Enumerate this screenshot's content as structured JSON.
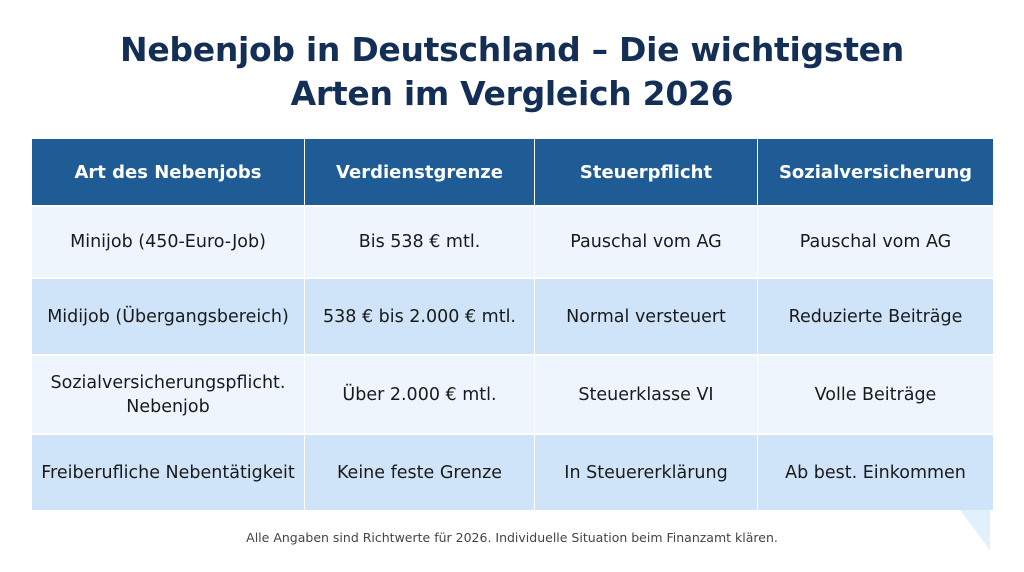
{
  "title": {
    "line1": "Nebenjob in Deutschland – Die wichtigsten",
    "line2": "Arten im Vergleich 2026"
  },
  "table": {
    "headers": [
      "Art des Nebenjobs",
      "Verdienstgrenze",
      "Steuerpflicht",
      "Sozialversicherung"
    ],
    "rows": [
      [
        "Minijob (450-Euro-Job)",
        "Bis 538 € mtl.",
        "Pauschal vom AG",
        "Pauschal vom AG"
      ],
      [
        "Midijob (Übergangsbereich)",
        "538 € bis 2.000 € mtl.",
        "Normal versteuert",
        "Reduzierte Beiträge"
      ],
      [
        "Sozialversicherungspflicht. Nebenjob",
        "Über 2.000 € mtl.",
        "Steuerklasse VI",
        "Volle Beiträge"
      ],
      [
        "Freiberufliche Nebentätigkeit",
        "Keine feste Grenze",
        "In Steuererklärung",
        "Ab best. Einkommen"
      ]
    ]
  },
  "footer": "Alle Angaben sind Richtwerte für 2026. Individuelle Situation beim Finanzamt klären.",
  "colors": {
    "header": "#1f5b95",
    "title": "#142f55",
    "row_light": "#eef5fd",
    "row_dark": "#cfe4f8"
  }
}
